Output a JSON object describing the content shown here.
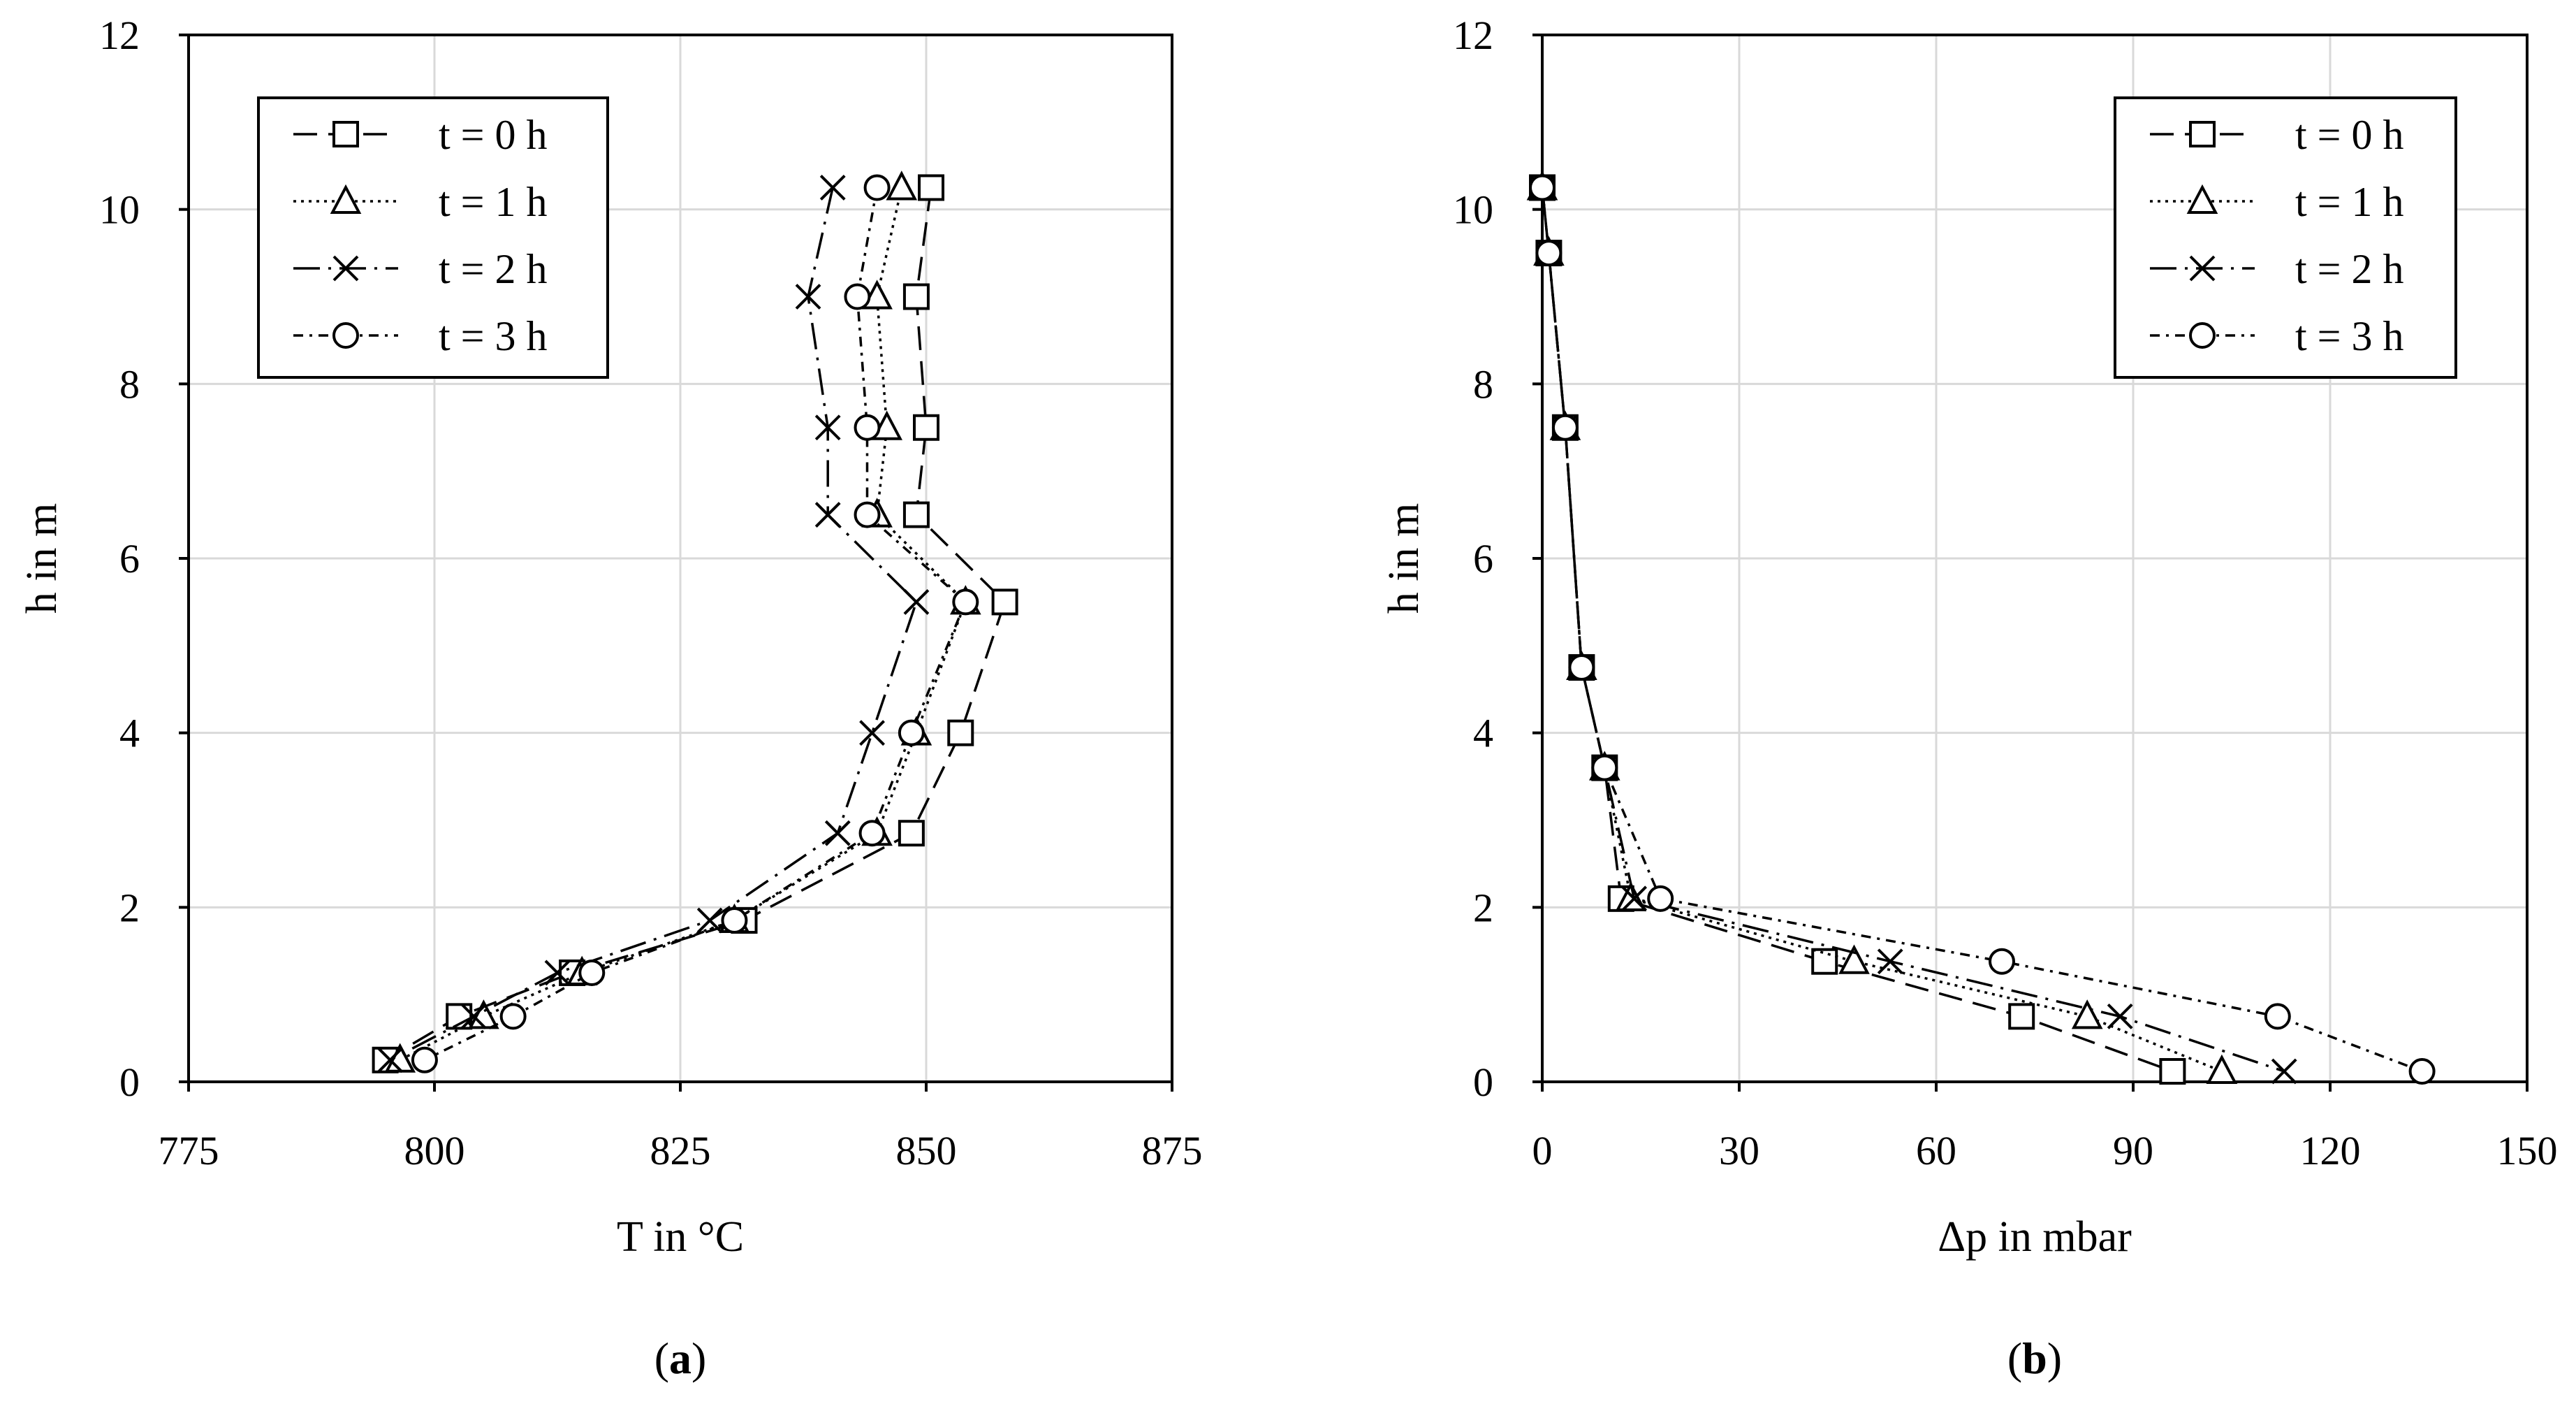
{
  "chart_data": [
    {
      "type": "line",
      "panel_label": "(a)",
      "xlabel": "T in °C",
      "ylabel": "h in m",
      "xlim": [
        775,
        875
      ],
      "ylim": [
        0,
        12
      ],
      "xticks": [
        775,
        800,
        825,
        850,
        875
      ],
      "yticks": [
        0,
        2,
        4,
        6,
        8,
        10,
        12
      ],
      "grid": true,
      "legend": "top-left",
      "series": [
        {
          "name": "t = 0 h",
          "marker": "square",
          "dash": "long-dash",
          "points": [
            [
              850.5,
              10.25
            ],
            [
              849,
              9.0
            ],
            [
              850,
              7.5
            ],
            [
              849,
              6.5
            ],
            [
              858,
              5.5
            ],
            [
              853.5,
              4.0
            ],
            [
              848.5,
              2.85
            ],
            [
              831.5,
              1.85
            ],
            [
              814,
              1.25
            ],
            [
              802.5,
              0.75
            ],
            [
              795,
              0.25
            ]
          ]
        },
        {
          "name": "t = 1 h",
          "marker": "triangle",
          "dash": "dotted",
          "points": [
            [
              847.5,
              10.25
            ],
            [
              845,
              9.0
            ],
            [
              846,
              7.5
            ],
            [
              845,
              6.5
            ],
            [
              854,
              5.5
            ],
            [
              849,
              4.0
            ],
            [
              845,
              2.85
            ],
            [
              830.5,
              1.85
            ],
            [
              815,
              1.25
            ],
            [
              805,
              0.75
            ],
            [
              796.5,
              0.25
            ]
          ]
        },
        {
          "name": "t = 2 h",
          "marker": "x",
          "dash": "long-dash-dot",
          "points": [
            [
              840.5,
              10.25
            ],
            [
              838,
              9.0
            ],
            [
              840,
              7.5
            ],
            [
              840,
              6.5
            ],
            [
              849,
              5.5
            ],
            [
              844.5,
              4.0
            ],
            [
              841,
              2.85
            ],
            [
              828,
              1.85
            ],
            [
              812.5,
              1.25
            ],
            [
              804,
              0.75
            ],
            [
              795.5,
              0.25
            ]
          ]
        },
        {
          "name": "t = 3 h",
          "marker": "circle",
          "dash": "short-dash-dot",
          "points": [
            [
              845,
              10.25
            ],
            [
              843,
              9.0
            ],
            [
              844,
              7.5
            ],
            [
              844,
              6.5
            ],
            [
              854,
              5.5
            ],
            [
              848.5,
              4.0
            ],
            [
              844.5,
              2.85
            ],
            [
              830.5,
              1.85
            ],
            [
              816,
              1.25
            ],
            [
              808,
              0.75
            ],
            [
              799,
              0.25
            ]
          ]
        }
      ]
    },
    {
      "type": "line",
      "panel_label": "(b)",
      "xlabel": "Δp in mbar",
      "ylabel": "h in m",
      "xlim": [
        0,
        150
      ],
      "ylim": [
        0,
        12
      ],
      "xticks": [
        0,
        30,
        60,
        90,
        120,
        150
      ],
      "yticks": [
        0,
        2,
        4,
        6,
        8,
        10,
        12
      ],
      "grid": true,
      "legend": "top-right",
      "series": [
        {
          "name": "t = 0 h",
          "marker": "square",
          "dash": "long-dash",
          "points": [
            [
              0,
              10.25
            ],
            [
              1,
              9.5
            ],
            [
              3.5,
              7.5
            ],
            [
              6,
              4.75
            ],
            [
              9.5,
              3.6
            ],
            [
              12,
              2.1
            ],
            [
              43,
              1.38
            ],
            [
              73,
              0.75
            ],
            [
              96,
              0.12
            ]
          ]
        },
        {
          "name": "t = 1 h",
          "marker": "triangle",
          "dash": "dotted",
          "points": [
            [
              0,
              10.25
            ],
            [
              1,
              9.5
            ],
            [
              3.5,
              7.5
            ],
            [
              6,
              4.75
            ],
            [
              9.5,
              3.6
            ],
            [
              13.5,
              2.1
            ],
            [
              47.5,
              1.38
            ],
            [
              83,
              0.75
            ],
            [
              103.5,
              0.12
            ]
          ]
        },
        {
          "name": "t = 2 h",
          "marker": "x",
          "dash": "long-dash-dot",
          "points": [
            [
              0,
              10.25
            ],
            [
              1,
              9.5
            ],
            [
              3.5,
              7.5
            ],
            [
              6,
              4.75
            ],
            [
              9.5,
              3.6
            ],
            [
              14,
              2.1
            ],
            [
              53,
              1.38
            ],
            [
              88,
              0.75
            ],
            [
              113,
              0.12
            ]
          ]
        },
        {
          "name": "t = 3 h",
          "marker": "circle",
          "dash": "short-dash-dot",
          "points": [
            [
              0,
              10.25
            ],
            [
              1,
              9.5
            ],
            [
              3.5,
              7.5
            ],
            [
              6,
              4.75
            ],
            [
              9.5,
              3.6
            ],
            [
              18,
              2.1
            ],
            [
              70,
              1.38
            ],
            [
              112,
              0.75
            ],
            [
              134,
              0.12
            ]
          ]
        }
      ]
    }
  ]
}
